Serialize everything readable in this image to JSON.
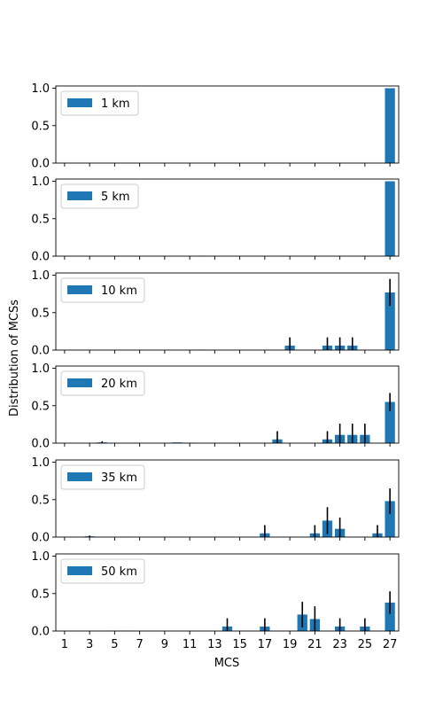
{
  "chart_data": {
    "type": "bar",
    "ylabel": "Distribution of MCSs",
    "xlabel": "MCS",
    "x_ticks": [
      1,
      3,
      5,
      7,
      9,
      11,
      13,
      15,
      17,
      19,
      21,
      23,
      25,
      27
    ],
    "ylim": [
      0,
      1.0
    ],
    "y_ticks": [
      "0.0",
      "0.5",
      "1.0"
    ],
    "legend_position": "upper-left",
    "bar_color": "#1f77b4",
    "error_color": "#000000",
    "panels": [
      {
        "name": "1 km",
        "bars": [
          {
            "mcs": 27,
            "value": 1.0,
            "err": 0
          }
        ]
      },
      {
        "name": "5 km",
        "bars": [
          {
            "mcs": 12,
            "value": 0.005,
            "err": 0
          },
          {
            "mcs": 27,
            "value": 1.0,
            "err": 0
          }
        ]
      },
      {
        "name": "10 km",
        "bars": [
          {
            "mcs": 11,
            "value": 0.005,
            "err": 0
          },
          {
            "mcs": 12,
            "value": 0.005,
            "err": 0
          },
          {
            "mcs": 19,
            "value": 0.06,
            "err": 0.11
          },
          {
            "mcs": 22,
            "value": 0.06,
            "err": 0.11
          },
          {
            "mcs": 23,
            "value": 0.06,
            "err": 0.11
          },
          {
            "mcs": 24,
            "value": 0.06,
            "err": 0.11
          },
          {
            "mcs": 27,
            "value": 0.77,
            "err": 0.18
          }
        ]
      },
      {
        "name": "20 km",
        "bars": [
          {
            "mcs": 4,
            "value": 0.01,
            "err": 0.015
          },
          {
            "mcs": 10,
            "value": 0.01,
            "err": 0
          },
          {
            "mcs": 11,
            "value": 0.005,
            "err": 0
          },
          {
            "mcs": 18,
            "value": 0.05,
            "err": 0.11
          },
          {
            "mcs": 22,
            "value": 0.05,
            "err": 0.11
          },
          {
            "mcs": 23,
            "value": 0.11,
            "err": 0.15
          },
          {
            "mcs": 24,
            "value": 0.11,
            "err": 0.15
          },
          {
            "mcs": 25,
            "value": 0.11,
            "err": 0.15
          },
          {
            "mcs": 27,
            "value": 0.55,
            "err": 0.12
          }
        ]
      },
      {
        "name": "35 km",
        "bars": [
          {
            "mcs": 3,
            "value": 0.01,
            "err": 0.01
          },
          {
            "mcs": 6,
            "value": 0.005,
            "err": 0
          },
          {
            "mcs": 17,
            "value": 0.05,
            "err": 0.11
          },
          {
            "mcs": 21,
            "value": 0.05,
            "err": 0.11
          },
          {
            "mcs": 22,
            "value": 0.22,
            "err": 0.18
          },
          {
            "mcs": 23,
            "value": 0.11,
            "err": 0.15
          },
          {
            "mcs": 26,
            "value": 0.05,
            "err": 0.11
          },
          {
            "mcs": 27,
            "value": 0.48,
            "err": 0.17
          }
        ]
      },
      {
        "name": "50 km",
        "bars": [
          {
            "mcs": 5,
            "value": 0.005,
            "err": 0
          },
          {
            "mcs": 6,
            "value": 0.005,
            "err": 0
          },
          {
            "mcs": 14,
            "value": 0.06,
            "err": 0.11
          },
          {
            "mcs": 17,
            "value": 0.06,
            "err": 0.11
          },
          {
            "mcs": 20,
            "value": 0.22,
            "err": 0.17
          },
          {
            "mcs": 21,
            "value": 0.16,
            "err": 0.17
          },
          {
            "mcs": 23,
            "value": 0.06,
            "err": 0.11
          },
          {
            "mcs": 25,
            "value": 0.06,
            "err": 0.11
          },
          {
            "mcs": 27,
            "value": 0.38,
            "err": 0.15
          }
        ]
      }
    ]
  }
}
